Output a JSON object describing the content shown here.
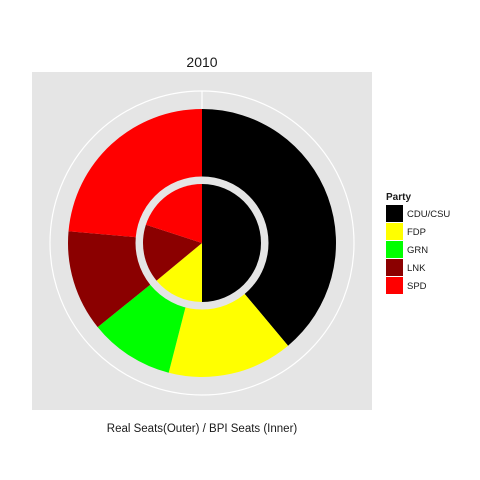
{
  "chart_data": {
    "type": "pie",
    "title": "2010",
    "xlabel": "Real Seats(Outer) / BPI Seats (Inner)",
    "legend": {
      "title": "Party",
      "position": "right"
    },
    "parties": [
      "CDU/CSU",
      "FDP",
      "GRN",
      "LNK",
      "SPD"
    ],
    "colors": [
      "#000000",
      "#ffff00",
      "#00ff00",
      "#8b0000",
      "#ff0000"
    ],
    "series": [
      {
        "values": [
          0.389,
          0.151,
          0.102,
          0.122,
          0.236
        ]
      },
      {
        "values": [
          0.5,
          0.14,
          0.0,
          0.16,
          0.2
        ]
      }
    ]
  }
}
